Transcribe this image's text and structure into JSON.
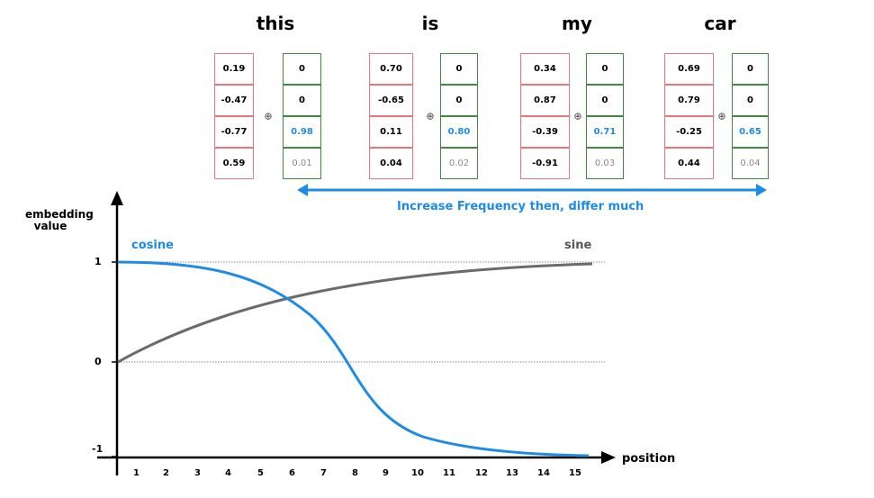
{
  "words": [
    "this",
    "is",
    "my",
    "car"
  ],
  "tokens": [
    {
      "word": "this",
      "embedding": [
        "0.19",
        "-0.47",
        "-0.77",
        "0.59"
      ],
      "position": [
        "0",
        "0",
        "0.98",
        "0.01"
      ]
    },
    {
      "word": "is",
      "embedding": [
        "0.70",
        "-0.65",
        "0.11",
        "0.04"
      ],
      "position": [
        "0",
        "0",
        "0.80",
        "0.02"
      ]
    },
    {
      "word": "my",
      "embedding": [
        "0.34",
        "0.87",
        "-0.39",
        "-0.91"
      ],
      "position": [
        "0",
        "0",
        "0.71",
        "0.03"
      ]
    },
    {
      "word": "car",
      "embedding": [
        "0.69",
        "0.79",
        "-0.25",
        "0.44"
      ],
      "position": [
        "0",
        "0",
        "0.65",
        "0.04"
      ]
    }
  ],
  "plus_symbol": "⊕",
  "frequency_note": "Increase Frequency then, differ much",
  "plot": {
    "y_axis_label_line1": "embedding",
    "y_axis_label_line2": "value",
    "x_axis_label": "position",
    "y_ticks": [
      "1",
      "0",
      "-1"
    ],
    "x_ticks": [
      "1",
      "2",
      "3",
      "4",
      "5",
      "6",
      "7",
      "8",
      "9",
      "10",
      "11",
      "12",
      "13",
      "14",
      "15"
    ],
    "cosine_label": "cosine",
    "sine_label": "sine"
  },
  "colors": {
    "blue": "#1e8be6",
    "gray_curve": "#6b6b6b",
    "embedding_border": "#e8767c",
    "position_border": "#3f8a3f"
  }
}
